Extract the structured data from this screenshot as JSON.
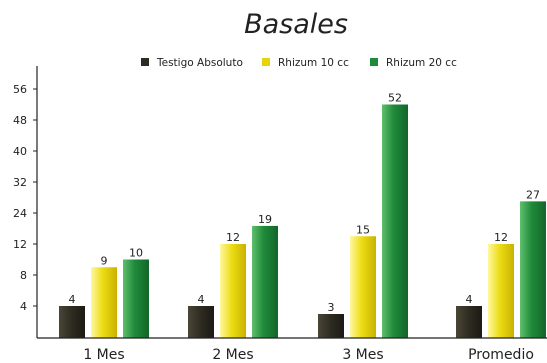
{
  "chart_data": {
    "type": "bar",
    "title": "Basales",
    "xlabel": "",
    "ylabel": "",
    "categories": [
      "1 Mes",
      "2 Mes",
      "3 Mes",
      "Promedio"
    ],
    "yticks": [
      4,
      8,
      12,
      24,
      32,
      40,
      48,
      56
    ],
    "ylim": [
      0,
      60
    ],
    "legend_position": "top",
    "grid": false,
    "series": [
      {
        "name": "Testigo Absoluto",
        "color": "#2e2b22",
        "values": [
          4,
          4,
          3,
          4
        ]
      },
      {
        "name": "Rhizum 10 cc",
        "color": "#e6d40a",
        "values": [
          9,
          12,
          15,
          12
        ]
      },
      {
        "name": "Rhizum 20 cc",
        "color": "#1f8a3a",
        "values": [
          10,
          19,
          52,
          27
        ]
      }
    ]
  }
}
